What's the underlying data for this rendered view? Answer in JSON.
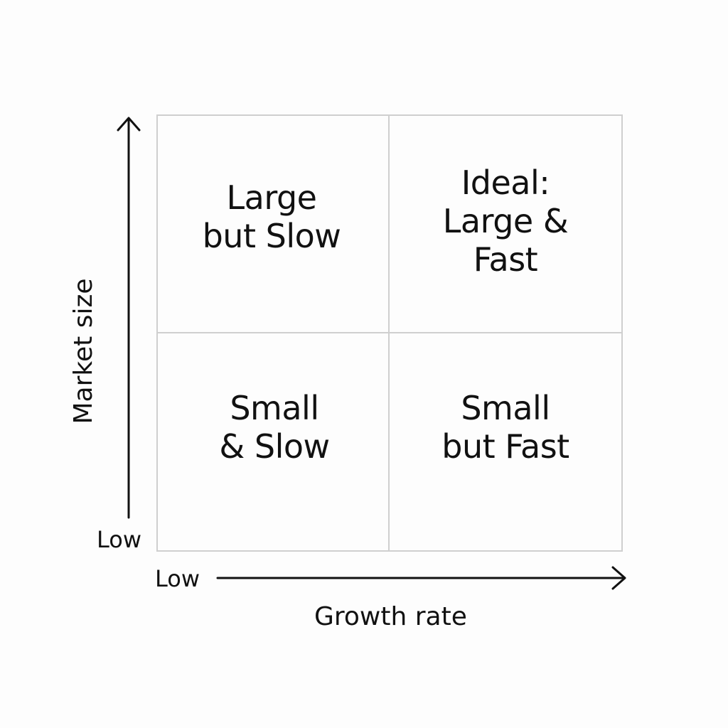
{
  "quadrants": {
    "top_left": "Large\nbut Slow",
    "top_right": "Ideal:\nLarge &\nFast",
    "bottom_left": "Small\n& Slow",
    "bottom_right": "Small\nbut Fast"
  },
  "axes": {
    "x_title": "Growth rate",
    "y_title": "Market size",
    "x_low": "Low",
    "y_low": "Low"
  },
  "colors": {
    "grid": "#cfcfcf",
    "text": "#111111",
    "background": "#fdfdfd"
  }
}
